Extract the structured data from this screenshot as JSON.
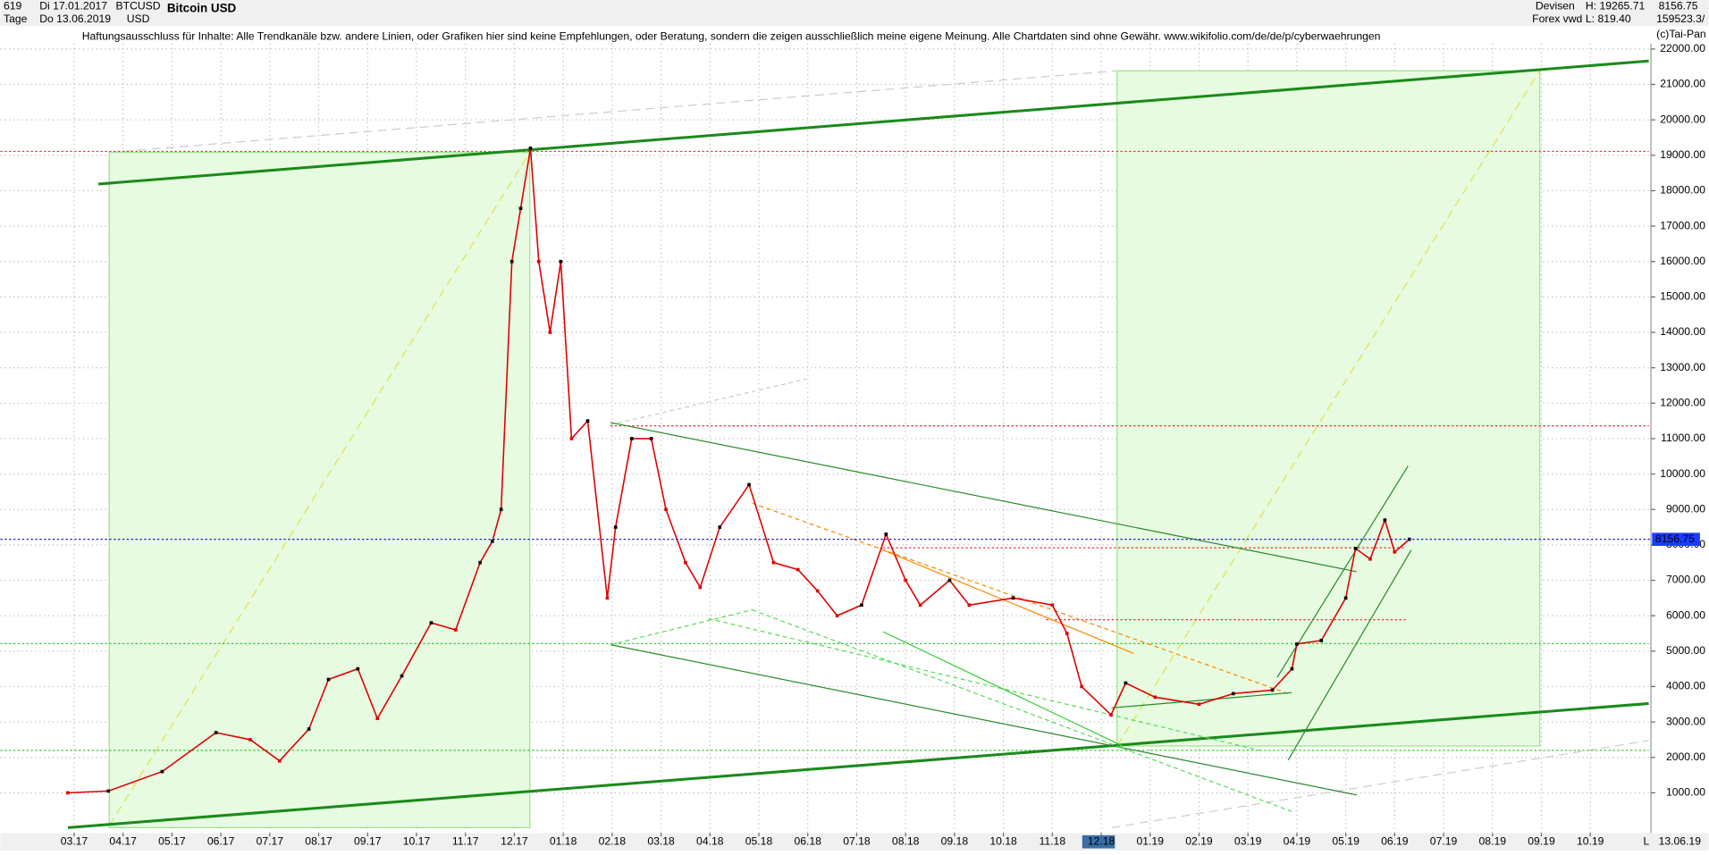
{
  "header": {
    "count": "619",
    "start_date": "Di 17.01.2017",
    "symbol": "BTCUSD",
    "name": "Bitcoin USD",
    "period": "Tage",
    "end_date": "Do 13.06.2019",
    "currency": "USD",
    "market": "Devisen",
    "source": "Forex vwd",
    "high": "H: 19265.71",
    "low": "L: 819.40",
    "last": "8156.75",
    "volume": "159523.3/",
    "copyright": "(c)Tai-Pan"
  },
  "chart_data": {
    "type": "line",
    "annotation": "Haftungsausschluss für Inhalte: Alle Trendkanäle bzw. andere Linien, oder Grafiken hier sind keine Empfehlungen, oder Beratung, sondern die zeigen ausschließlich meine eigene Meinung. Alle Chartdaten sind ohne Gewähr.  www.wikifolio.com/de/de/p/cyberwaehrungen",
    "x": [
      -0.13,
      0.7,
      1.8,
      2.9,
      3.6,
      4.2,
      4.8,
      5.2,
      5.8,
      6.2,
      6.7,
      7.3,
      7.8,
      8.3,
      8.55,
      8.73,
      8.95,
      9.13,
      9.33,
      9.5,
      9.73,
      9.95,
      10.17,
      10.5,
      10.9,
      11.07,
      11.4,
      11.8,
      12.1,
      12.5,
      12.8,
      13.2,
      13.8,
      14.3,
      14.8,
      15.2,
      15.6,
      16.1,
      16.6,
      17.0,
      17.3,
      17.9,
      18.3,
      19.2,
      20.0,
      20.3,
      20.6,
      21.2,
      21.5,
      22.1,
      23.0,
      23.7,
      24.5,
      24.9,
      25.0,
      25.5,
      26.0,
      26.2,
      26.5,
      26.8,
      27.0,
      27.3
    ],
    "series": [
      {
        "name": "Bitcoin USD",
        "color": "#e00000",
        "values": [
          1000,
          1050,
          1600,
          2700,
          2500,
          1900,
          2800,
          4200,
          4500,
          3100,
          4300,
          5800,
          5600,
          7500,
          8100,
          9000,
          16000,
          17500,
          19200,
          16000,
          14000,
          16000,
          11000,
          11500,
          6500,
          8500,
          11000,
          11000,
          9000,
          7500,
          6800,
          8500,
          9700,
          7500,
          7300,
          6700,
          6000,
          6300,
          8300,
          7000,
          6300,
          7000,
          6300,
          6500,
          6300,
          5500,
          4000,
          3200,
          4100,
          3700,
          3500,
          3800,
          3900,
          4500,
          5200,
          5300,
          6500,
          7900,
          7600,
          8700,
          7800,
          8157
        ]
      }
    ],
    "last_value": 8156.75,
    "xlim": [
      -1.51,
      32.24
    ],
    "ylim": [
      -138,
      22154
    ],
    "xticks": [
      {
        "value": 0,
        "label": "03.17"
      },
      {
        "value": 1,
        "label": "04.17"
      },
      {
        "value": 2,
        "label": "05.17"
      },
      {
        "value": 3,
        "label": "06.17"
      },
      {
        "value": 4,
        "label": "07.17"
      },
      {
        "value": 5,
        "label": "08.17"
      },
      {
        "value": 6,
        "label": "09.17"
      },
      {
        "value": 7,
        "label": "10.17"
      },
      {
        "value": 8,
        "label": "11.17"
      },
      {
        "value": 9,
        "label": "12.17"
      },
      {
        "value": 10,
        "label": "01.18"
      },
      {
        "value": 11,
        "label": "02.18"
      },
      {
        "value": 12,
        "label": "03.18"
      },
      {
        "value": 13,
        "label": "04.18"
      },
      {
        "value": 14,
        "label": "05.18"
      },
      {
        "value": 15,
        "label": "06.18"
      },
      {
        "value": 16,
        "label": "07.18"
      },
      {
        "value": 17,
        "label": "08.18"
      },
      {
        "value": 18,
        "label": "09.18"
      },
      {
        "value": 19,
        "label": "10.18"
      },
      {
        "value": 20,
        "label": "11.18"
      },
      {
        "value": 21,
        "label": "12.18"
      },
      {
        "value": 22,
        "label": "01.19"
      },
      {
        "value": 23,
        "label": "02.19"
      },
      {
        "value": 24,
        "label": "03.19"
      },
      {
        "value": 25,
        "label": "04.19"
      },
      {
        "value": 26,
        "label": "05.19"
      },
      {
        "value": 27,
        "label": "06.19"
      },
      {
        "value": 28,
        "label": "07.19"
      },
      {
        "value": 29,
        "label": "08.19"
      },
      {
        "value": 30,
        "label": "09.19"
      },
      {
        "value": 31,
        "label": "10.19"
      }
    ],
    "yticks": [
      {
        "value": 1000,
        "label": "1000.00"
      },
      {
        "value": 2000,
        "label": "2000.00"
      },
      {
        "value": 3000,
        "label": "3000.00"
      },
      {
        "value": 4000,
        "label": "4000.00"
      },
      {
        "value": 5000,
        "label": "5000.00"
      },
      {
        "value": 6000,
        "label": "6000.00"
      },
      {
        "value": 7000,
        "label": "7000.00"
      },
      {
        "value": 8000,
        "label": "8000.00"
      },
      {
        "value": 9000,
        "label": "9000.00"
      },
      {
        "value": 10000,
        "label": "10000.00"
      },
      {
        "value": 11000,
        "label": "11000.00"
      },
      {
        "value": 12000,
        "label": "12000.00"
      },
      {
        "value": 13000,
        "label": "13000.00"
      },
      {
        "value": 14000,
        "label": "14000.00"
      },
      {
        "value": 15000,
        "label": "15000.00"
      },
      {
        "value": 16000,
        "label": "16000.00"
      },
      {
        "value": 17000,
        "label": "17000.00"
      },
      {
        "value": 18000,
        "label": "18000.00"
      },
      {
        "value": 19000,
        "label": "19000.00"
      },
      {
        "value": 20000,
        "label": "20000.00"
      },
      {
        "value": 21000,
        "label": "21000.00"
      },
      {
        "value": 22000,
        "label": "22000.00"
      }
    ],
    "grid": true,
    "footer_label": "L",
    "footer_date": "13.06.19"
  }
}
